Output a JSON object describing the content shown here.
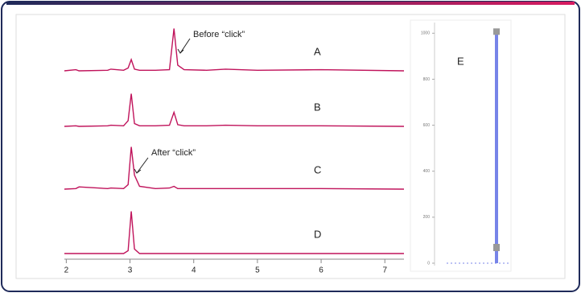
{
  "chart_data": [
    {
      "type": "line",
      "x": [
        1.97,
        2.15,
        2.2,
        2.65,
        2.7,
        2.9,
        2.97,
        3.02,
        3.07,
        3.15,
        3.4,
        3.62,
        3.69,
        3.75,
        3.85,
        4.2,
        4.5,
        5,
        6,
        7.3
      ],
      "series": [
        {
          "name": "A",
          "color": "#c0135b",
          "values": [
            0,
            2,
            0,
            1,
            3,
            1,
            5,
            20,
            3,
            1,
            1,
            2,
            75,
            10,
            2,
            1,
            3,
            1,
            2,
            0
          ]
        },
        {
          "name": "B",
          "color": "#c0135b",
          "values": [
            0,
            1,
            0,
            1,
            2,
            1,
            10,
            58,
            5,
            1,
            1,
            2,
            25,
            3,
            1,
            1,
            2,
            1,
            1,
            0
          ]
        },
        {
          "name": "C",
          "color": "#c0135b",
          "values": [
            0,
            1,
            4,
            1,
            2,
            1,
            8,
            75,
            25,
            5,
            1,
            2,
            5,
            1,
            1,
            1,
            1,
            1,
            1,
            0
          ]
        },
        {
          "name": "D",
          "color": "#c0135b",
          "values": [
            0,
            0,
            0,
            0,
            0,
            0,
            5,
            75,
            8,
            0,
            0,
            0,
            0,
            0,
            0,
            0,
            0,
            0,
            0,
            0
          ]
        }
      ],
      "xlim": [
        1.97,
        7.3
      ],
      "xticks": [
        2,
        3,
        4,
        5,
        6,
        7
      ],
      "ylim": [
        0,
        100
      ],
      "annotations": [
        "Before “click”",
        "After “click”"
      ]
    },
    {
      "type": "bar",
      "title": "E",
      "categories": [
        null
      ],
      "values": [
        1000
      ],
      "color": "#4a5be0",
      "ylim": [
        0,
        1050
      ],
      "yticks": [
        0,
        200,
        400,
        600,
        800,
        1000
      ]
    }
  ]
}
